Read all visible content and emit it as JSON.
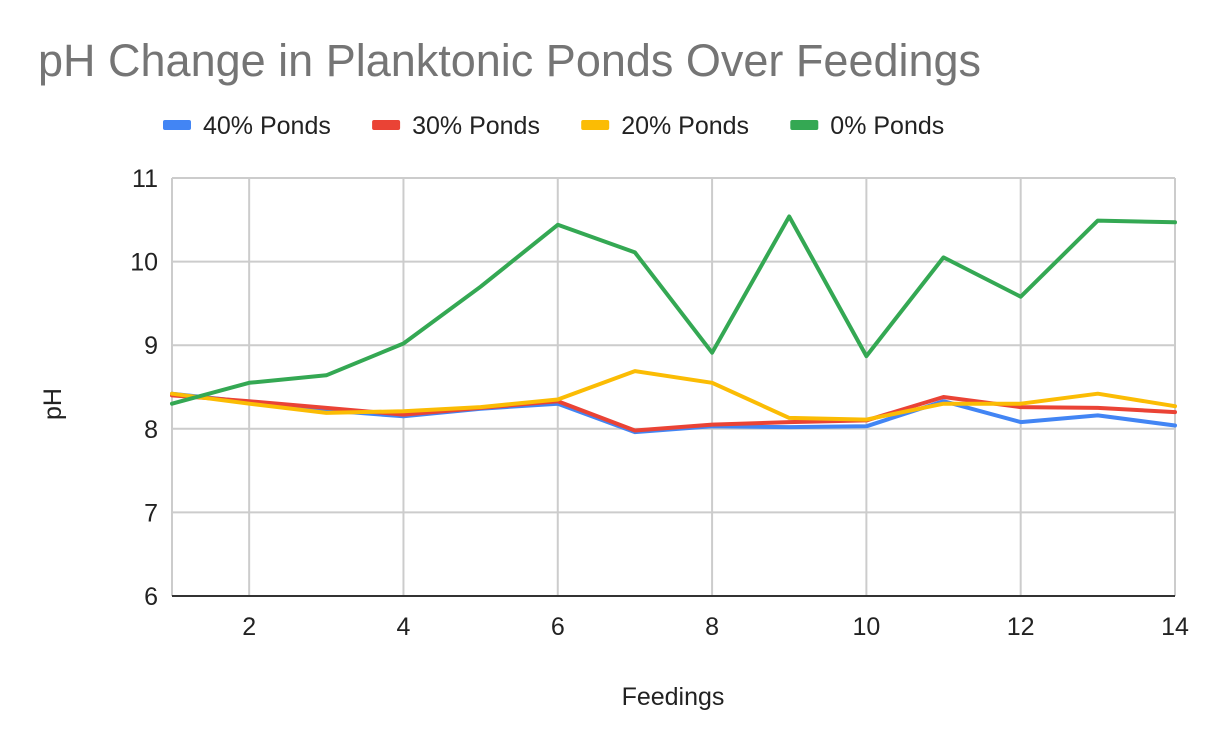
{
  "chart_data": {
    "type": "line",
    "title": "pH Change in Planktonic Ponds Over Feedings",
    "xlabel": "Feedings",
    "ylabel": "pH",
    "xlim": [
      1,
      14
    ],
    "ylim": [
      6,
      11
    ],
    "x_ticks": [
      2,
      4,
      6,
      8,
      10,
      12,
      14
    ],
    "y_ticks": [
      6,
      7,
      8,
      9,
      10,
      11
    ],
    "grid": true,
    "legend_position": "top",
    "x": [
      1,
      2,
      3,
      4,
      5,
      6,
      7,
      8,
      9,
      10,
      11,
      12,
      13,
      14
    ],
    "series": [
      {
        "name": "40% Ponds",
        "color": "#4285f4",
        "values": [
          8.42,
          8.32,
          8.22,
          8.15,
          8.24,
          8.3,
          7.96,
          8.03,
          8.02,
          8.03,
          8.33,
          8.08,
          8.16,
          8.04
        ]
      },
      {
        "name": "30% Ponds",
        "color": "#ea4335",
        "values": [
          8.4,
          8.33,
          8.25,
          8.17,
          8.25,
          8.33,
          7.98,
          8.05,
          8.08,
          8.1,
          8.38,
          8.26,
          8.25,
          8.2
        ]
      },
      {
        "name": "20% Ponds",
        "color": "#fbbc04",
        "values": [
          8.42,
          8.3,
          8.19,
          8.21,
          8.26,
          8.35,
          8.69,
          8.55,
          8.13,
          8.11,
          8.3,
          8.3,
          8.42,
          8.27
        ]
      },
      {
        "name": "0% Ponds",
        "color": "#34a853",
        "values": [
          8.3,
          8.55,
          8.64,
          9.02,
          9.7,
          10.44,
          10.11,
          8.91,
          10.54,
          8.87,
          10.05,
          9.58,
          10.49,
          10.47
        ]
      }
    ]
  }
}
